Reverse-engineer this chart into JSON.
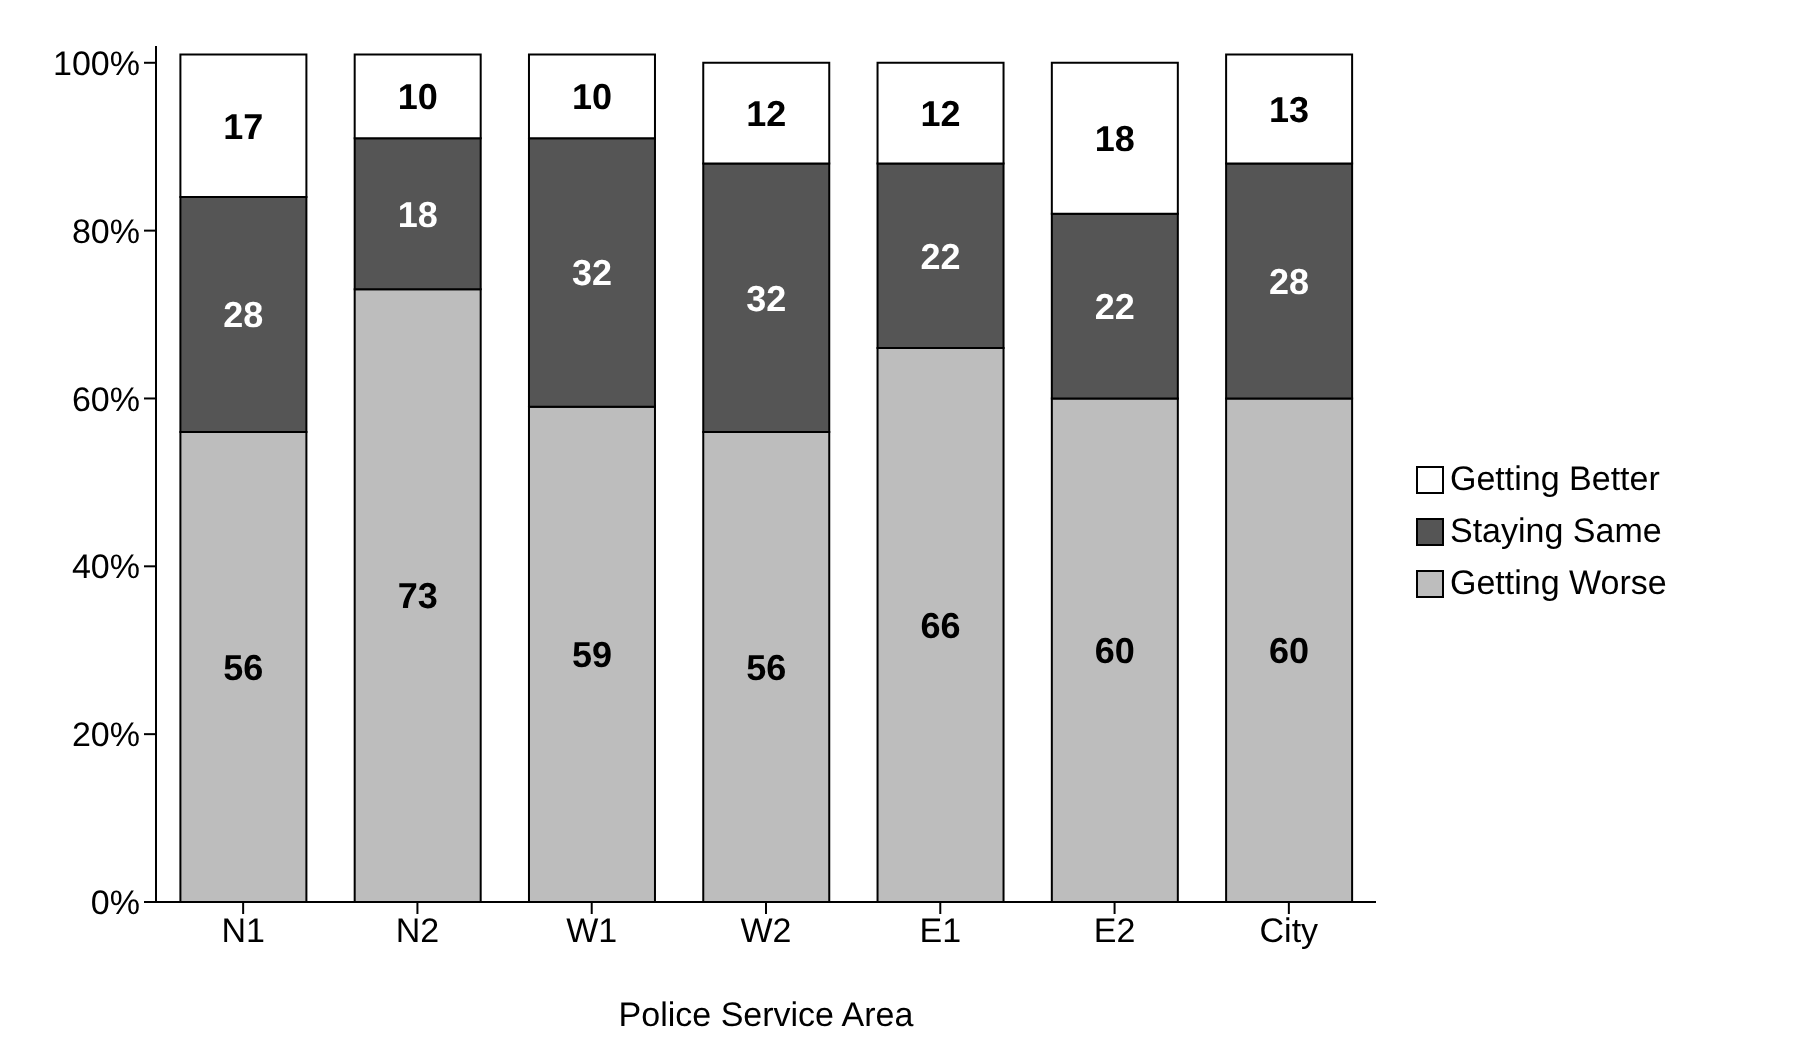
{
  "chart_data": {
    "type": "bar",
    "stacked": true,
    "xlabel": "Police Service Area",
    "categories": [
      "N1",
      "N2",
      "W1",
      "W2",
      "E1",
      "E2",
      "City"
    ],
    "series": [
      {
        "name": "Getting Worse",
        "color": "#bdbdbd",
        "values": [
          56,
          73,
          59,
          56,
          66,
          60,
          60
        ]
      },
      {
        "name": "Staying Same",
        "color": "#555555",
        "values": [
          28,
          18,
          32,
          32,
          22,
          22,
          28
        ]
      },
      {
        "name": "Getting Better",
        "color": "#ffffff",
        "values": [
          17,
          10,
          10,
          12,
          12,
          18,
          13
        ]
      }
    ],
    "ylim": [
      0,
      102
    ],
    "yticks": [
      {
        "value": 0,
        "label": "0%"
      },
      {
        "value": 20,
        "label": "20%"
      },
      {
        "value": 40,
        "label": "40%"
      },
      {
        "value": 60,
        "label": "60%"
      },
      {
        "value": 80,
        "label": "80%"
      },
      {
        "value": 100,
        "label": "100%"
      }
    ],
    "data_labels": true,
    "legend": "right",
    "grid": false
  }
}
